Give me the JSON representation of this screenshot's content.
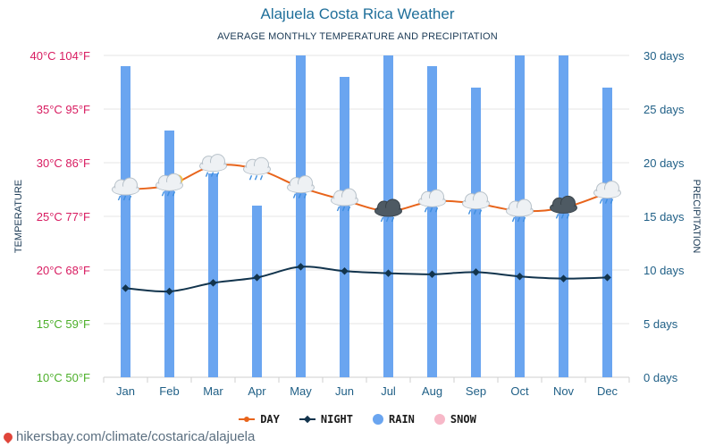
{
  "header": {
    "title": "Alajuela Costa Rica Weather",
    "subtitle": "AVERAGE MONTHLY TEMPERATURE AND PRECIPITATION"
  },
  "chart_data": {
    "type": "bar+line",
    "title": "Alajuela Costa Rica Weather",
    "subtitle": "AVERAGE MONTHLY TEMPERATURE AND PRECIPITATION",
    "categories": [
      "Jan",
      "Feb",
      "Mar",
      "Apr",
      "May",
      "Jun",
      "Jul",
      "Aug",
      "Sep",
      "Oct",
      "Nov",
      "Dec"
    ],
    "y_left": {
      "label": "TEMPERATURE",
      "range_c": [
        10,
        40
      ],
      "ticks": [
        "10°C 50°F",
        "15°C 59°F",
        "20°C 68°F",
        "25°C 77°F",
        "30°C 86°F",
        "35°C 95°F",
        "40°C 104°F"
      ],
      "tick_colors": [
        "#4caf2a",
        "#4caf2a",
        "#d81b60",
        "#d81b60",
        "#d81b60",
        "#d81b60",
        "#d81b60"
      ]
    },
    "y_right": {
      "label": "PRECIPITATION",
      "range_days": [
        0,
        30
      ],
      "ticks": [
        "0 days",
        "5 days",
        "10 days",
        "15 days",
        "20 days",
        "25 days",
        "30 days"
      ]
    },
    "series": [
      {
        "name": "DAY",
        "kind": "line",
        "unit": "°C",
        "color": "#e8641b",
        "values": [
          27.5,
          27.9,
          29.7,
          29.4,
          27.7,
          26.5,
          25.5,
          26.4,
          26.2,
          25.5,
          25.8,
          27.2
        ]
      },
      {
        "name": "NIGHT",
        "kind": "line",
        "unit": "°C",
        "color": "#12344d",
        "values": [
          18.3,
          18.0,
          18.8,
          19.3,
          20.3,
          19.9,
          19.7,
          19.6,
          19.8,
          19.4,
          19.2,
          19.3
        ]
      },
      {
        "name": "RAIN",
        "kind": "bar",
        "unit": "days",
        "color": "#6aa5f0",
        "values": [
          29,
          23,
          19,
          16,
          30,
          28,
          30,
          29,
          27,
          30,
          30,
          27
        ]
      },
      {
        "name": "SNOW",
        "kind": "bar",
        "unit": "days",
        "color": "#f7b8c8",
        "values": [
          0,
          0,
          0,
          0,
          0,
          0,
          0,
          0,
          0,
          0,
          0,
          0
        ]
      }
    ],
    "weather_icons": [
      "rain-cloud",
      "sun-rain-cloud",
      "rain-cloud",
      "rain-cloud",
      "rain-cloud",
      "rain-cloud",
      "storm-cloud",
      "rain-cloud",
      "rain-cloud",
      "rain-cloud",
      "storm-cloud",
      "rain-cloud"
    ],
    "legend": [
      {
        "label": "DAY",
        "color": "#e8641b"
      },
      {
        "label": "NIGHT",
        "color": "#12344d"
      },
      {
        "label": "RAIN",
        "color": "#6aa5f0"
      },
      {
        "label": "SNOW",
        "color": "#f7b8c8"
      }
    ],
    "legend_position": "bottom-center"
  },
  "footer": {
    "source": "hikersbay.com/climate/costarica/alajuela"
  }
}
